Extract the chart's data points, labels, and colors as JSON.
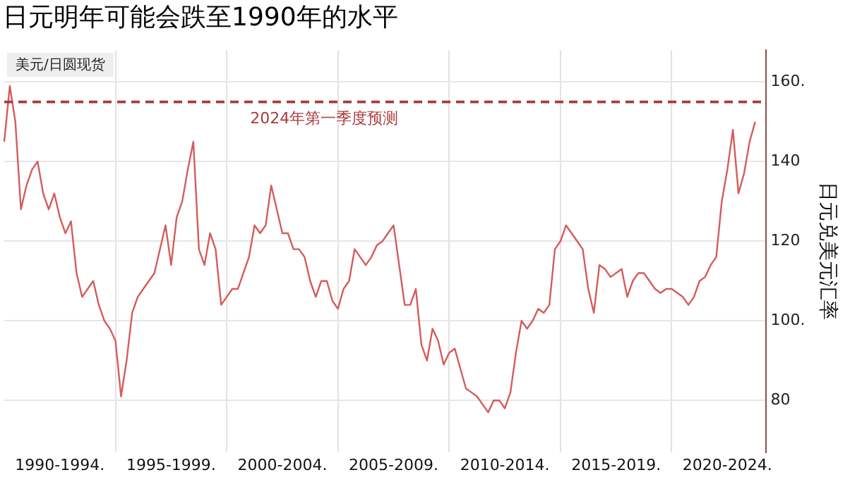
{
  "chart_data": {
    "type": "line",
    "title": "日元明年可能会跌至1990年的水平",
    "ylabel": "日元兑美元汇率",
    "annotations": [
      "美元/日圆现货"
    ],
    "categories": [
      null,
      null,
      null,
      null,
      null,
      null,
      null,
      null,
      null,
      null,
      "1990-1994.",
      null,
      null,
      null,
      null,
      null,
      null,
      null,
      null,
      null,
      null,
      null,
      null,
      null,
      null,
      null,
      null,
      null,
      null,
      null,
      "1995-1999.",
      null,
      null,
      null,
      null,
      null,
      null,
      null,
      null,
      null,
      null,
      null,
      null,
      null,
      null,
      null,
      null,
      null,
      null,
      null,
      "2000-2004.",
      null,
      null,
      null,
      null,
      null,
      null,
      null,
      null,
      null,
      null,
      null,
      null,
      null,
      null,
      null,
      null,
      null,
      null,
      null,
      "2005-2009.",
      null,
      null,
      null,
      null,
      null,
      null,
      null,
      null,
      null,
      null,
      null,
      null,
      null,
      null,
      null,
      null,
      null,
      null,
      null,
      "2010-2014.",
      null,
      null,
      null,
      null,
      null,
      null,
      null,
      null,
      null,
      null,
      null,
      null,
      null,
      null,
      null,
      null,
      null,
      null,
      null,
      "2015-2019.",
      null,
      null,
      null,
      null,
      null,
      null,
      null,
      null,
      null,
      null,
      null,
      null,
      null,
      null,
      null,
      null,
      null,
      null,
      null,
      "2020-2024.",
      null,
      null,
      null,
      null,
      null,
      null,
      null
    ],
    "series": [
      {
        "color": "#d45c5c",
        "values": [
          145,
          159,
          150,
          128,
          134,
          138,
          140,
          132,
          128,
          132,
          126,
          122,
          125,
          112,
          106,
          108,
          110,
          104,
          100,
          98,
          95,
          81,
          90,
          102,
          106,
          108,
          110,
          112,
          118,
          124,
          114,
          126,
          130,
          138,
          145,
          118,
          114,
          122,
          118,
          104,
          106,
          108,
          108,
          112,
          116,
          124,
          122,
          124,
          134,
          128,
          122,
          122,
          118,
          118,
          116,
          110,
          106,
          110,
          110,
          105,
          103,
          108,
          110,
          118,
          116,
          114,
          116,
          119,
          120,
          122,
          124,
          114,
          104,
          104,
          108,
          94,
          90,
          98,
          95,
          89,
          92,
          93,
          88,
          83,
          82,
          81,
          79,
          77,
          80,
          80,
          78,
          82,
          92,
          100,
          98,
          100,
          103,
          102,
          104,
          118,
          120,
          124,
          122,
          120,
          118,
          108,
          102,
          114,
          113,
          111,
          112,
          113,
          106,
          110,
          112,
          112,
          110,
          108,
          107,
          108,
          108,
          107,
          106,
          104,
          106,
          110,
          111,
          114,
          116,
          130,
          138,
          148,
          132,
          137,
          145,
          150,
          null,
          null
        ]
      }
    ],
    "ylim": [
      67,
      168
    ],
    "yticks": [
      80,
      {
        "value": 100,
        "label": "100."
      },
      120,
      140,
      {
        "value": 160,
        "label": "160."
      }
    ],
    "ref_lines": [
      {
        "axis": "y",
        "value": 155,
        "label": "2024年第一季度预测",
        "color": "#a83a3a",
        "line_style": "dashed"
      }
    ],
    "grid": true,
    "marker": "none",
    "line_style": "solid",
    "legend": false
  }
}
